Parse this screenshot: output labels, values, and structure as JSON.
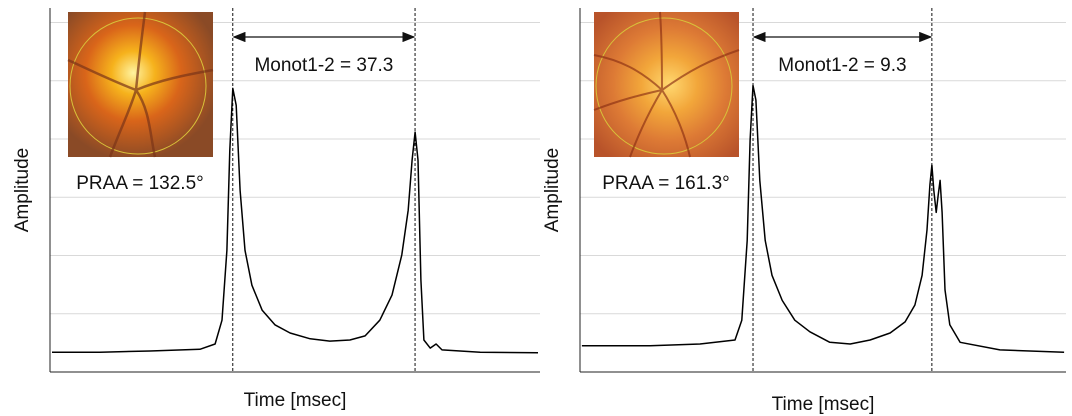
{
  "chart_data": [
    {
      "type": "line",
      "color": "#000000",
      "xlabel": "Time [msec]",
      "ylabel": "Amplitude",
      "annotation": "Monot1-2 = 37.3",
      "inset_label": "PRAA = 132.5°",
      "markers": [
        37.3,
        74.5
      ],
      "xlim": [
        0,
        100
      ],
      "ylim": [
        0,
        6.25
      ],
      "yticks": [
        1,
        2,
        3,
        4,
        5,
        6
      ],
      "grid": true,
      "x": [
        0.4,
        10.2,
        20.4,
        30.6,
        33.7,
        35.1,
        36.1,
        36.7,
        37.3,
        38.0,
        38.8,
        39.8,
        41.2,
        43.3,
        45.9,
        49.0,
        53.1,
        57.1,
        61.2,
        64.3,
        67.3,
        69.8,
        71.8,
        73.1,
        73.9,
        74.5,
        75.1,
        75.7,
        76.3,
        77.6,
        78.8,
        80.0,
        87.8,
        99.6
      ],
      "values": [
        0.34,
        0.34,
        0.36,
        0.39,
        0.48,
        0.89,
        2.09,
        3.81,
        4.87,
        4.58,
        3.12,
        2.09,
        1.49,
        1.06,
        0.81,
        0.67,
        0.57,
        0.53,
        0.55,
        0.62,
        0.89,
        1.32,
        2.01,
        2.78,
        3.64,
        4.12,
        3.64,
        1.58,
        0.55,
        0.41,
        0.48,
        0.38,
        0.34,
        0.33
      ]
    },
    {
      "type": "line",
      "color": "#000000",
      "xlabel": "Time [msec]",
      "ylabel": "Amplitude",
      "annotation": "Monot1-2 = 9.3",
      "inset_label": "PRAA = 161.3°",
      "markers": [
        35.6,
        72.4
      ],
      "xlim": [
        0,
        100
      ],
      "ylim": [
        0,
        6.25
      ],
      "yticks": [
        1,
        2,
        3,
        4,
        5,
        6
      ],
      "grid": true,
      "x": [
        0.4,
        14.4,
        24.7,
        31.9,
        33.3,
        34.4,
        35.0,
        35.6,
        36.2,
        37.0,
        38.1,
        39.5,
        41.6,
        44.2,
        47.3,
        51.4,
        55.6,
        59.7,
        63.8,
        66.9,
        68.9,
        70.4,
        71.4,
        72.0,
        72.4,
        72.8,
        73.3,
        73.7,
        74.1,
        74.5,
        75.1,
        76.1,
        78.2,
        86.4,
        99.6
      ],
      "values": [
        0.45,
        0.45,
        0.48,
        0.55,
        0.89,
        2.26,
        3.98,
        4.92,
        4.67,
        3.29,
        2.26,
        1.66,
        1.23,
        0.89,
        0.69,
        0.51,
        0.48,
        0.55,
        0.67,
        0.86,
        1.15,
        1.66,
        2.44,
        3.21,
        3.55,
        3.12,
        2.74,
        3.04,
        3.29,
        2.74,
        1.41,
        0.81,
        0.51,
        0.38,
        0.34
      ]
    }
  ]
}
